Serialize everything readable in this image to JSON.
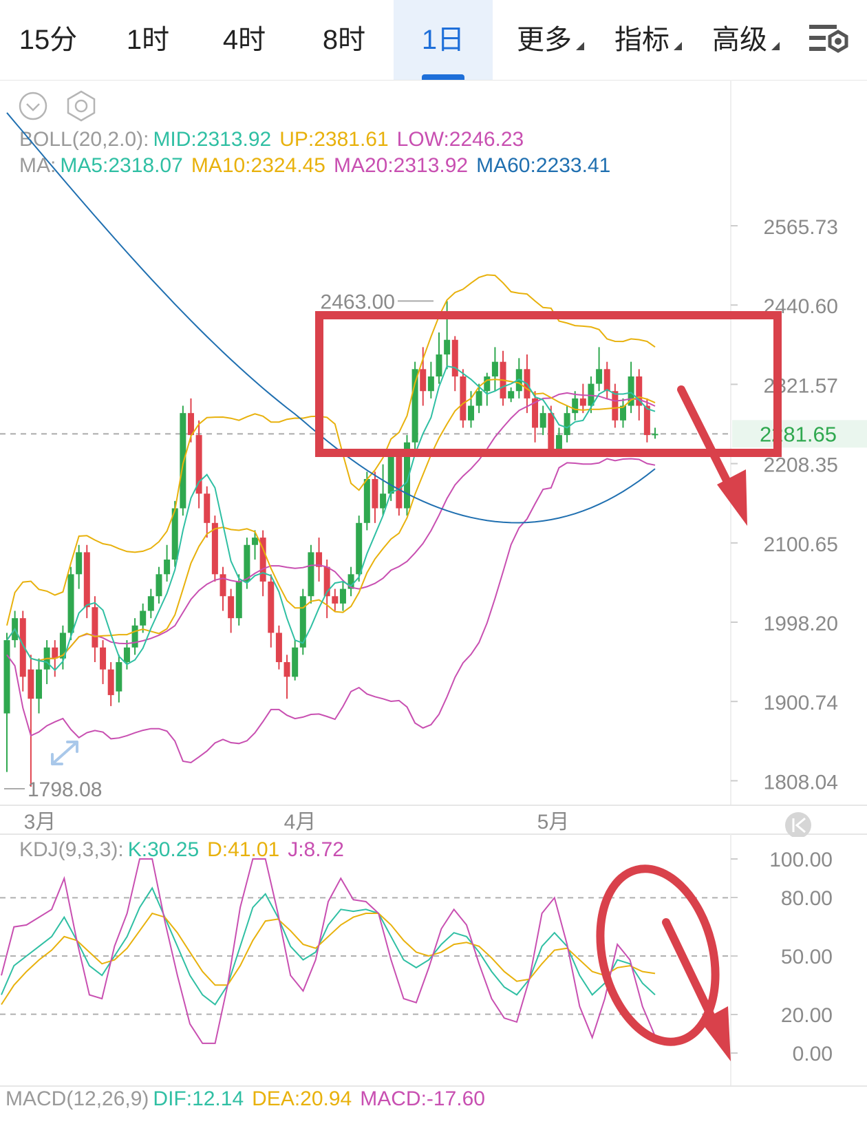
{
  "tabs": [
    {
      "label": "15分",
      "active": false
    },
    {
      "label": "1时",
      "active": false
    },
    {
      "label": "4时",
      "active": false
    },
    {
      "label": "8时",
      "active": false
    },
    {
      "label": "1日",
      "active": true
    },
    {
      "label": "更多",
      "active": false,
      "dropdown": true
    },
    {
      "label": "指标",
      "active": false,
      "dropdown": true
    },
    {
      "label": "高级",
      "active": false,
      "dropdown": true
    }
  ],
  "icons": {
    "collapse": "chevron-down-circle-icon",
    "settings": "hexagon-gear-icon",
    "toolbar_settings": "chart-settings-icon",
    "expand": "expand-arrows-icon",
    "back": "skip-back-icon"
  },
  "legend": {
    "boll": {
      "label": "BOLL(20,2.0):",
      "mid": "MID:2313.92",
      "up": "UP:2381.61",
      "low": "LOW:2246.23"
    },
    "ma": {
      "label": "MA:",
      "ma5": "MA5:2318.07",
      "ma10": "MA10:2324.45",
      "ma20": "MA20:2313.92",
      "ma60": "MA60:2233.41"
    },
    "kdj": {
      "label": "KDJ(9,3,3):",
      "k": "K:30.25",
      "d": "D:41.01",
      "j": "J:8.72"
    },
    "macd": {
      "label": "MACD(12,26,9)",
      "dif": "DIF:12.14",
      "dea": "DEA:20.94",
      "macd": "MACD:-17.60"
    }
  },
  "colors": {
    "up": "#e0434e",
    "down": "#2fa84f",
    "ma5": "#2fbfa3",
    "ma10": "#e8b10c",
    "ma20": "#c84fb1",
    "ma60": "#1f6fb0",
    "annot": "#d9414b",
    "gray": "#9a9a9a",
    "current": "#2fa84f"
  },
  "chart_data": [
    {
      "type": "candlestick",
      "y_ticks": [
        "2565.73",
        "2440.60",
        "2321.57",
        "2208.35",
        "2100.65",
        "1998.20",
        "1900.74",
        "1808.04"
      ],
      "x_ticks": [
        "3月",
        "4月",
        "5月"
      ],
      "ylim": [
        1808.04,
        2565.73
      ],
      "current_price": "2281.65",
      "high_marker": "2463.00",
      "low_marker": "1798.08",
      "candles": [
        [
          1900,
          2000,
          1820,
          2010
        ],
        [
          2000,
          2030,
          1990,
          2040
        ],
        [
          2030,
          1950,
          1930,
          2040
        ],
        [
          1960,
          1920,
          1800,
          1980
        ],
        [
          1920,
          1960,
          1900,
          1975
        ],
        [
          1960,
          1990,
          1940,
          2000
        ],
        [
          1990,
          1975,
          1950,
          2000
        ],
        [
          1975,
          2010,
          1960,
          2020
        ],
        [
          2010,
          2090,
          2000,
          2100
        ],
        [
          2090,
          2120,
          2070,
          2130
        ],
        [
          2120,
          2045,
          2030,
          2130
        ],
        [
          2045,
          1990,
          1970,
          2060
        ],
        [
          1990,
          1960,
          1940,
          2000
        ],
        [
          1960,
          1925,
          1910,
          1970
        ],
        [
          1930,
          1970,
          1915,
          1980
        ],
        [
          1970,
          1990,
          1960,
          2000
        ],
        [
          1990,
          2020,
          1980,
          2030
        ],
        [
          2020,
          2040,
          2010,
          2050
        ],
        [
          2040,
          2060,
          2030,
          2070
        ],
        [
          2060,
          2090,
          2050,
          2100
        ],
        [
          2090,
          2110,
          2080,
          2130
        ],
        [
          2110,
          2180,
          2100,
          2190
        ],
        [
          2180,
          2310,
          2170,
          2320
        ],
        [
          2310,
          2280,
          2270,
          2330
        ],
        [
          2280,
          2200,
          2180,
          2300
        ],
        [
          2200,
          2160,
          2140,
          2210
        ],
        [
          2160,
          2090,
          2080,
          2170
        ],
        [
          2090,
          2060,
          2040,
          2100
        ],
        [
          2060,
          2030,
          2010,
          2070
        ],
        [
          2030,
          2080,
          2020,
          2090
        ],
        [
          2080,
          2130,
          2070,
          2140
        ],
        [
          2130,
          2140,
          2110,
          2150
        ],
        [
          2140,
          2080,
          2060,
          2150
        ],
        [
          2080,
          2010,
          1990,
          2090
        ],
        [
          2010,
          1970,
          1960,
          2020
        ],
        [
          1970,
          1950,
          1920,
          1980
        ],
        [
          1950,
          1990,
          1945,
          2000
        ],
        [
          1990,
          2060,
          1980,
          2070
        ],
        [
          2060,
          2120,
          2050,
          2130
        ],
        [
          2120,
          2100,
          2080,
          2140
        ],
        [
          2100,
          2060,
          2030,
          2110
        ],
        [
          2060,
          2050,
          2040,
          2070
        ],
        [
          2050,
          2070,
          2040,
          2080
        ],
        [
          2070,
          2090,
          2060,
          2100
        ],
        [
          2090,
          2160,
          2080,
          2170
        ],
        [
          2160,
          2220,
          2150,
          2230
        ],
        [
          2220,
          2180,
          2160,
          2230
        ],
        [
          2180,
          2200,
          2170,
          2240
        ],
        [
          2200,
          2250,
          2190,
          2260
        ],
        [
          2250,
          2180,
          2170,
          2260
        ],
        [
          2180,
          2270,
          2170,
          2280
        ],
        [
          2270,
          2370,
          2260,
          2380
        ],
        [
          2370,
          2340,
          2320,
          2400
        ],
        [
          2340,
          2360,
          2330,
          2380
        ],
        [
          2360,
          2390,
          2350,
          2420
        ],
        [
          2390,
          2410,
          2370,
          2463
        ],
        [
          2410,
          2360,
          2340,
          2415
        ],
        [
          2360,
          2300,
          2290,
          2370
        ],
        [
          2300,
          2320,
          2290,
          2340
        ],
        [
          2320,
          2340,
          2310,
          2350
        ],
        [
          2340,
          2360,
          2320,
          2365
        ],
        [
          2360,
          2380,
          2340,
          2400
        ],
        [
          2380,
          2330,
          2320,
          2395
        ],
        [
          2330,
          2340,
          2325,
          2345
        ],
        [
          2340,
          2370,
          2330,
          2385
        ],
        [
          2370,
          2330,
          2310,
          2390
        ],
        [
          2330,
          2290,
          2270,
          2340
        ],
        [
          2290,
          2310,
          2280,
          2320
        ],
        [
          2310,
          2260,
          2250,
          2320
        ],
        [
          2260,
          2280,
          2250,
          2290
        ],
        [
          2280,
          2310,
          2270,
          2320
        ],
        [
          2310,
          2330,
          2300,
          2340
        ],
        [
          2330,
          2320,
          2310,
          2350
        ],
        [
          2320,
          2350,
          2310,
          2360
        ],
        [
          2350,
          2370,
          2340,
          2400
        ],
        [
          2370,
          2340,
          2330,
          2380
        ],
        [
          2340,
          2300,
          2290,
          2350
        ],
        [
          2300,
          2320,
          2290,
          2330
        ],
        [
          2320,
          2360,
          2310,
          2380
        ],
        [
          2360,
          2320,
          2300,
          2370
        ],
        [
          2320,
          2280,
          2270,
          2330
        ],
        [
          2280,
          2281.65,
          2275,
          2290
        ]
      ]
    },
    {
      "type": "line",
      "title_bind": "KDJ",
      "y_ticks": [
        "100.00",
        "80.00",
        "50.00",
        "20.00",
        "0.00"
      ],
      "ylim": [
        0,
        100
      ],
      "series": [
        {
          "name": "K",
          "values": [
            30,
            45,
            50,
            55,
            60,
            70,
            58,
            45,
            40,
            50,
            60,
            75,
            85,
            70,
            55,
            40,
            30,
            25,
            35,
            55,
            75,
            82,
            70,
            55,
            48,
            52,
            66,
            74,
            73,
            74,
            72,
            60,
            48,
            44,
            48,
            56,
            62,
            60,
            52,
            42,
            34,
            30,
            38,
            55,
            62,
            55,
            40,
            30,
            36,
            48,
            46,
            36,
            30
          ]
        },
        {
          "name": "D",
          "values": [
            25,
            35,
            42,
            48,
            53,
            60,
            58,
            52,
            46,
            48,
            54,
            63,
            72,
            70,
            62,
            52,
            42,
            35,
            35,
            45,
            58,
            68,
            69,
            63,
            56,
            54,
            60,
            66,
            70,
            72,
            72,
            66,
            58,
            52,
            50,
            52,
            56,
            57,
            55,
            49,
            42,
            37,
            38,
            46,
            53,
            54,
            48,
            42,
            40,
            44,
            45,
            42,
            41
          ]
        },
        {
          "name": "J",
          "values": [
            40,
            65,
            66,
            70,
            74,
            90,
            58,
            30,
            28,
            55,
            72,
            100,
            100,
            68,
            40,
            15,
            5,
            5,
            35,
            75,
            100,
            100,
            72,
            40,
            32,
            48,
            78,
            90,
            79,
            78,
            72,
            48,
            28,
            26,
            44,
            64,
            74,
            66,
            46,
            28,
            18,
            16,
            38,
            72,
            80,
            56,
            24,
            8,
            28,
            56,
            48,
            24,
            8.72
          ]
        }
      ]
    }
  ]
}
